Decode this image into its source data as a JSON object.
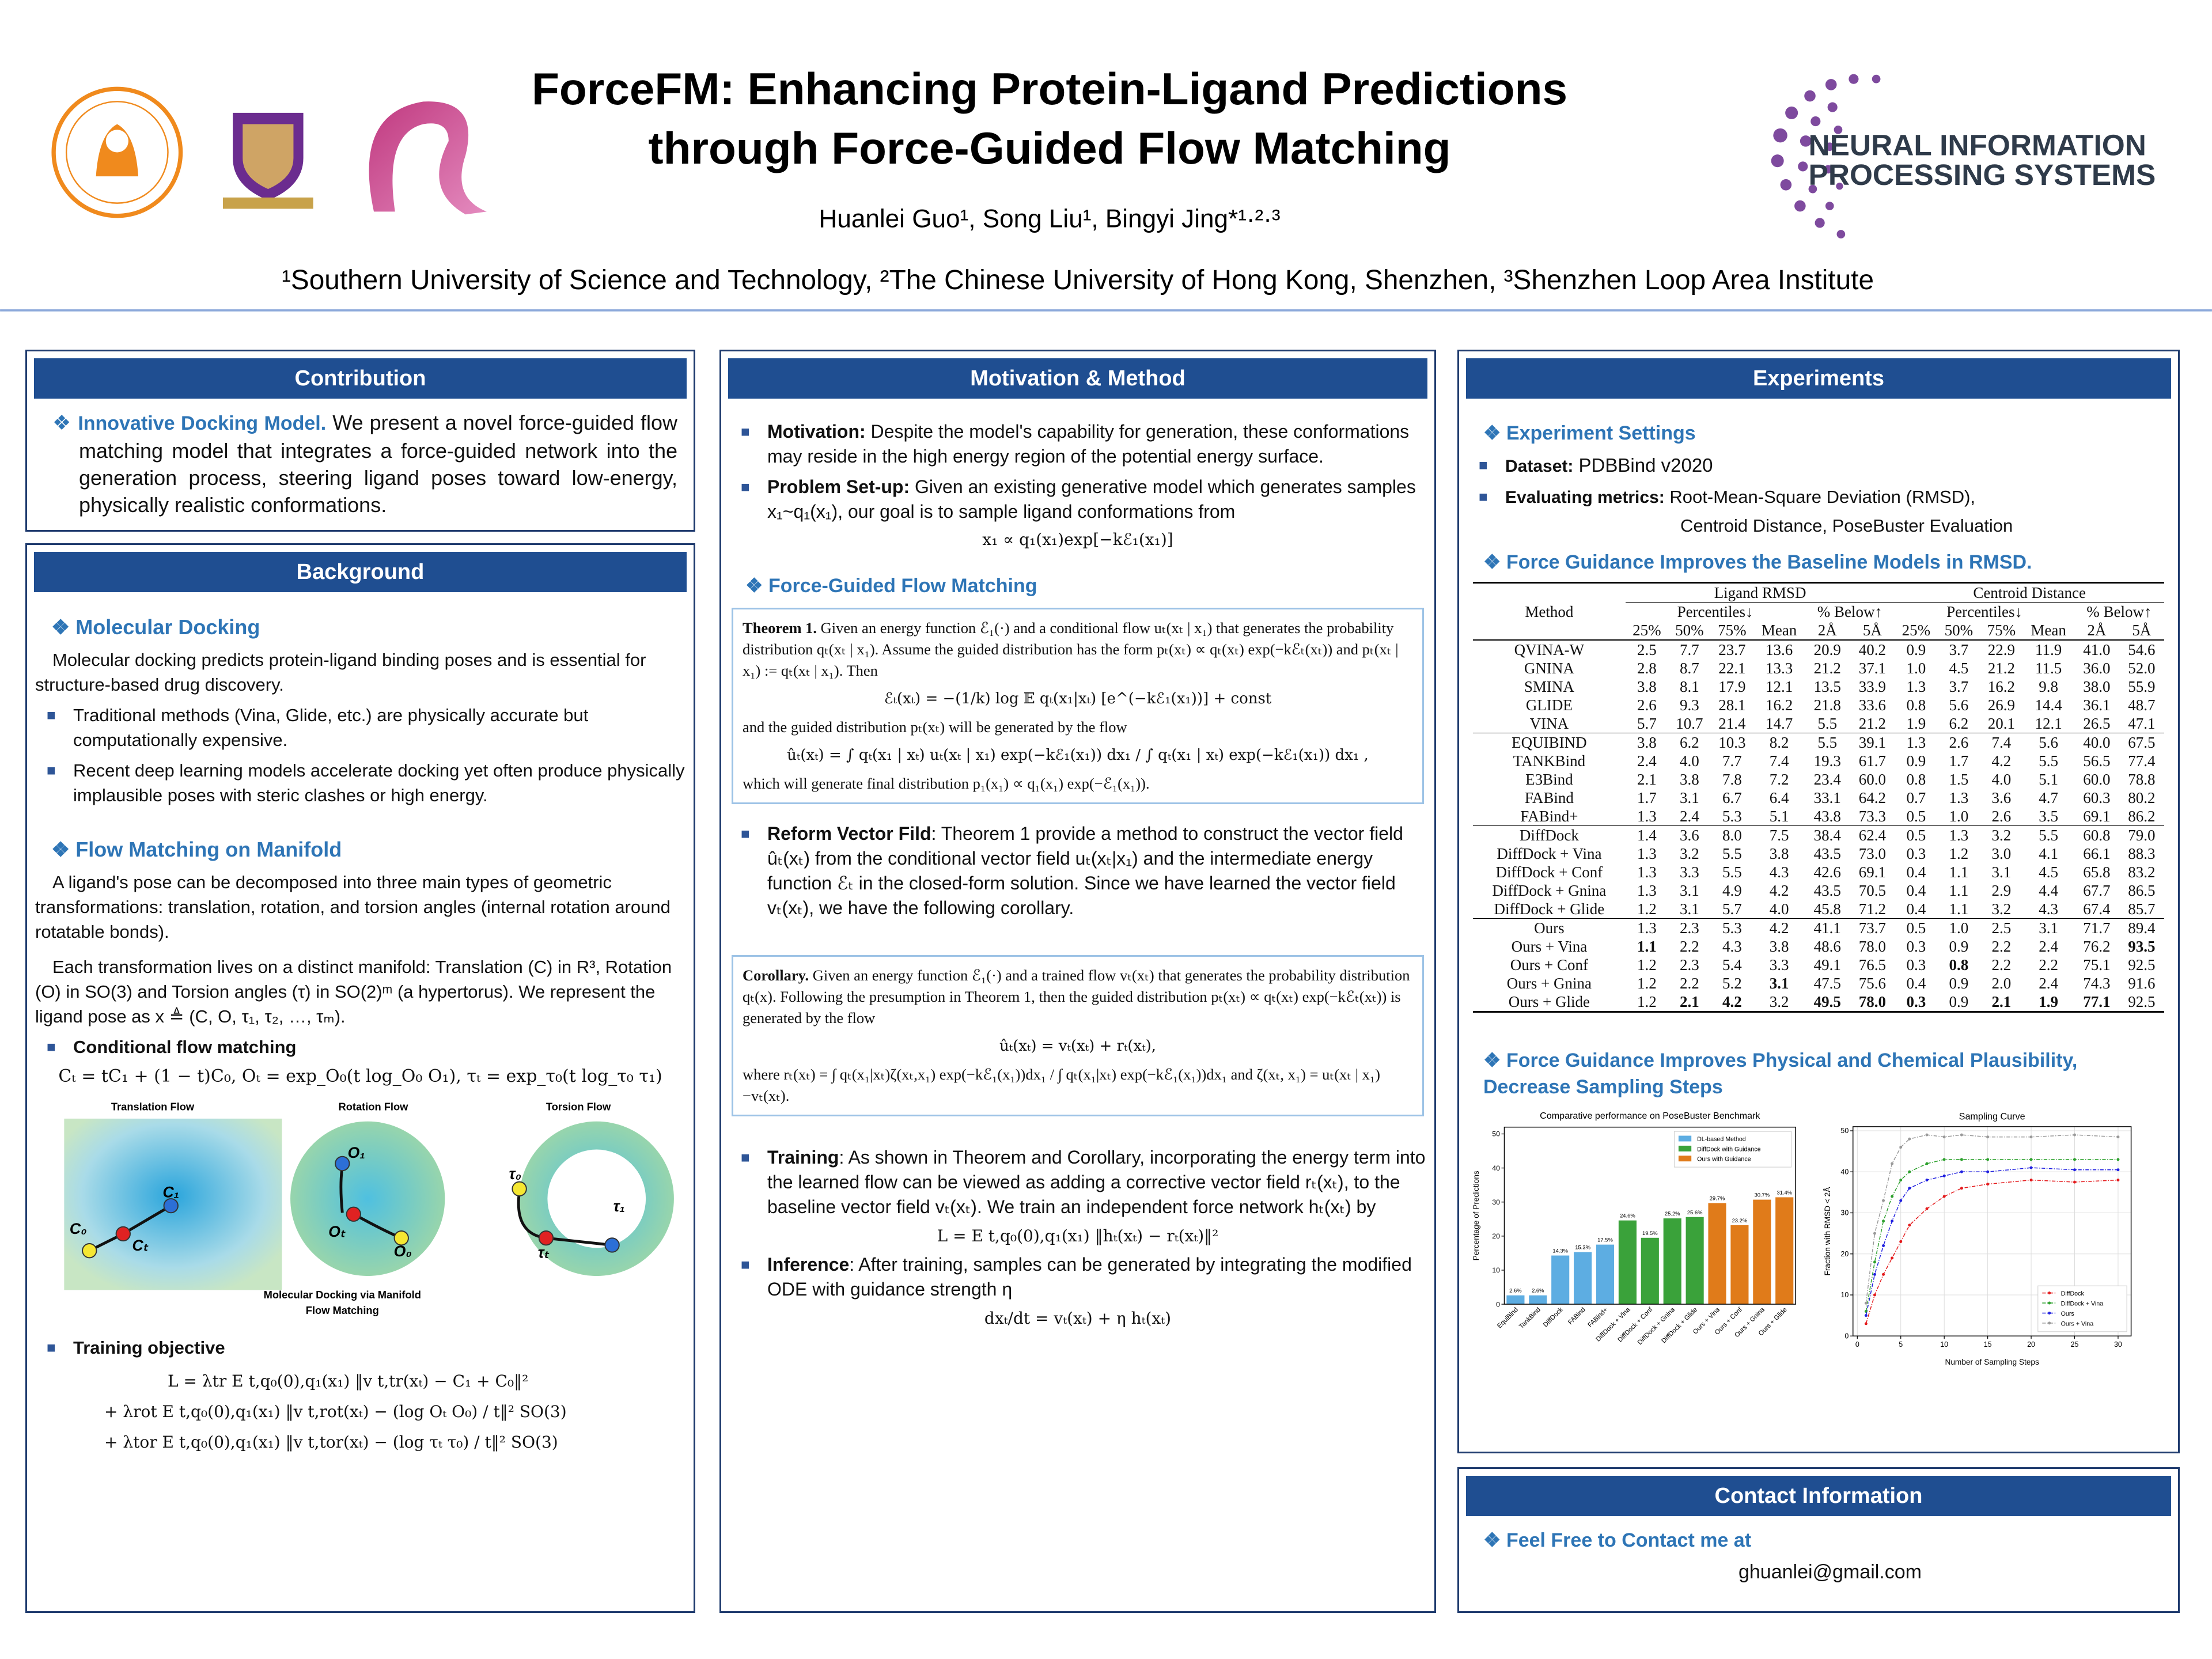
{
  "header": {
    "title_line1": "ForceFM: Enhancing Protein-Ligand Predictions",
    "title_line2": "through Force-Guided Flow Matching",
    "authors": "Huanlei Guo¹, Song Liu¹, Bingyi Jing*¹·²·³",
    "affiliations": "¹Southern University of Science and Technology, ²The Chinese University of Hong Kong, Shenzhen, ³Shenzhen Loop Area Institute",
    "neurips_line1": "NEURAL INFORMATION",
    "neurips_line2": "PROCESSING SYSTEMS"
  },
  "contribution": {
    "heading": "Contribution",
    "lead": "Innovative Docking Model.",
    "text": "We present a novel force-guided flow matching model that integrates a force-guided network into the generation process, steering ligand poses toward low-energy, physically realistic conformations."
  },
  "background": {
    "heading": "Background",
    "docking_heading": "Molecular Docking",
    "docking_text": "Molecular docking predicts protein-ligand binding poses and is essential for structure-based drug discovery.",
    "bullets": [
      "Traditional methods (Vina, Glide, etc.) are physically accurate but computationally expensive.",
      "Recent deep learning models accelerate docking yet often produce physically implausible poses with steric clashes or high energy."
    ],
    "flow_heading": "Flow Matching on Manifold",
    "flow_p1": "A ligand's pose can be decomposed into three main types of geometric transformations: translation, rotation, and torsion angles (internal rotation around rotatable bonds).",
    "flow_p2": "Each transformation lives on a distinct manifold: Translation (C) in R³, Rotation (O) in SO(3) and Torsion angles (τ) in SO(2)ᵐ (a hypertorus). We represent the ligand pose as x ≜ (C, O, τ₁, τ₂, …, τₘ).",
    "cfm_heading": "Conditional flow matching",
    "cfm_formula": "Cₜ = tC₁ + (1 − t)C₀,  Oₜ = exp_O₀(t log_O₀ O₁), τₜ = exp_τ₀(t log_τ₀ τ₁)",
    "figure": {
      "panels": [
        "Translation Flow",
        "Rotation Flow",
        "Torsion Flow"
      ],
      "caption": [
        "Molecular Docking via Manifold",
        "Flow Matching"
      ],
      "points": [
        "C₀",
        "C₁",
        "Cₜ",
        "O₀",
        "O₁",
        "Oₜ",
        "τ₀",
        "τ₁",
        "τₜ"
      ]
    },
    "objective_heading": "Training objective",
    "objective": [
      "L = λtr E t,q₀(0),q₁(x₁) ‖v t,tr(xₜ) − C₁ + C₀‖²",
      "+ λrot E t,q₀(0),q₁(x₁) ‖v t,rot(xₜ) − (log Oₜ O₀) / t‖² SO(3)",
      "+ λtor E t,q₀(0),q₁(x₁) ‖v t,tor(xₜ) − (log τₜ τ₀) / t‖² SO(3)"
    ]
  },
  "method": {
    "heading": "Motivation & Method",
    "motivation": {
      "label": "Motivation:",
      "text": "Despite the model's capability for generation, these conformations may reside in the high energy region of the potential energy surface."
    },
    "setup": {
      "label": "Problem Set-up:",
      "text": "Given an existing generative model which generates samples x₁~q₁(x₁), our goal is to sample ligand conformations from",
      "formula": "x₁ ∝ q₁(x₁)exp[−kℰ₁(x₁)]"
    },
    "fgfm_heading": "Force-Guided Flow Matching",
    "theorem": {
      "label": "Theorem 1.",
      "text1": "Given an energy function ℰ₁(·) and a conditional flow uₜ(xₜ | x₁) that generates the probability distribution qₜ(xₜ | x₁). Assume the guided distribution has the form pₜ(xₜ) ∝ qₜ(xₜ) exp(−kℰₜ(xₜ)) and pₜ(xₜ | x₁) := qₜ(xₜ | x₁). Then",
      "formula1": "ℰₜ(xₜ) = −(1/k) log 𝔼 qₜ(x₁|xₜ) [e^(−kℰ₁(x₁))] + const",
      "text2": "and the guided distribution pₜ(xₜ) will be generated by the flow",
      "formula2": "ûₜ(xₜ) = ∫ qₜ(x₁ | xₜ) uₜ(xₜ | x₁) exp(−kℰ₁(x₁)) dx₁ / ∫ qₜ(x₁ | xₜ) exp(−kℰ₁(x₁)) dx₁ ,",
      "text3": "which will generate final distribution p₁(x₁) ∝ q₁(x₁) exp(−ℰ₁(x₁))."
    },
    "reform": {
      "label": "Reform Vector Fild",
      "text": ": Theorem 1 provide a method to construct the vector field ûₜ(xₜ) from the conditional vector field uₜ(xₜ|x₁) and the intermediate energy function ℰₜ in the closed-form solution. Since we have learned the vector field vₜ(xₜ), we have the following corollary."
    },
    "corollary": {
      "label": "Corollary.",
      "text1": "Given an energy function ℰ₁(·) and a trained flow vₜ(xₜ) that generates the probability distribution qₜ(x). Following the presumption in Theorem 1, then the guided distribution pₜ(xₜ) ∝ qₜ(xₜ) exp(−kℰₜ(xₜ)) is generated by the flow",
      "formula1": "ûₜ(xₜ) = vₜ(xₜ) + rₜ(xₜ),",
      "text2": "where rₜ(xₜ) = ∫ qₜ(x₁|xₜ)ζ(xₜ,x₁) exp(−kℰ₁(x₁))dx₁ / ∫ qₜ(x₁|xₜ) exp(−kℰ₁(x₁))dx₁ and ζ(xₜ, x₁) = uₜ(xₜ | x₁)−vₜ(xₜ)."
    },
    "training": {
      "label": "Training",
      "text": ": As shown in Theorem and Corollary, incorporating the energy term into the learned flow can be viewed as adding a corrective vector field rₜ(xₜ), to the baseline vector field vₜ(xₜ). We train an independent force network hₜ(xₜ) by",
      "formula": "L = E t,q₀(0),q₁(x₁) ‖hₜ(xₜ) − rₜ(xₜ)‖²"
    },
    "inference": {
      "label": "Inference",
      "text": ": After training, samples can be generated by integrating the modified ODE with guidance strength η",
      "formula": "dxₜ/dt = vₜ(xₜ) + η hₜ(xₜ)"
    }
  },
  "experiments": {
    "heading": "Experiments",
    "settings_heading": "Experiment Settings",
    "dataset": {
      "label": "Dataset:",
      "text": "PDBBind v2020"
    },
    "metrics": {
      "label": "Evaluating metrics:",
      "text1": "Root-Mean-Square Deviation (RMSD),",
      "text2": "Centroid Distance, PoseBuster Evaluation"
    },
    "rmsd_heading": "Force Guidance Improves the Baseline Models in RMSD.",
    "table": {
      "method": "Method",
      "groups": [
        "Ligand RMSD",
        "Centroid Distance"
      ],
      "subgroups": [
        "Percentiles↓",
        "% Below↑"
      ],
      "columns": [
        "25%",
        "50%",
        "75%",
        "Mean",
        "2Å",
        "5Å"
      ],
      "rows": [
        [
          [
            "QVINA-W",
            "2.5",
            "7.7",
            "23.7",
            "13.6",
            "20.9",
            "40.2",
            "0.9",
            "3.7",
            "22.9",
            "11.9",
            "41.0",
            "54.6"
          ],
          [
            "GNINA",
            "2.8",
            "8.7",
            "22.1",
            "13.3",
            "21.2",
            "37.1",
            "1.0",
            "4.5",
            "21.2",
            "11.5",
            "36.0",
            "52.0"
          ],
          [
            "SMINA",
            "3.8",
            "8.1",
            "17.9",
            "12.1",
            "13.5",
            "33.9",
            "1.3",
            "3.7",
            "16.2",
            "9.8",
            "38.0",
            "55.9"
          ],
          [
            "GLIDE",
            "2.6",
            "9.3",
            "28.1",
            "16.2",
            "21.8",
            "33.6",
            "0.8",
            "5.6",
            "26.9",
            "14.4",
            "36.1",
            "48.7"
          ],
          [
            "VINA",
            "5.7",
            "10.7",
            "21.4",
            "14.7",
            "5.5",
            "21.2",
            "1.9",
            "6.2",
            "20.1",
            "12.1",
            "26.5",
            "47.1"
          ]
        ],
        [
          [
            "EQUIBIND",
            "3.8",
            "6.2",
            "10.3",
            "8.2",
            "5.5",
            "39.1",
            "1.3",
            "2.6",
            "7.4",
            "5.6",
            "40.0",
            "67.5"
          ],
          [
            "TANKBind",
            "2.4",
            "4.0",
            "7.7",
            "7.4",
            "19.3",
            "61.7",
            "0.9",
            "1.7",
            "4.2",
            "5.5",
            "56.5",
            "77.4"
          ],
          [
            "E3Bind",
            "2.1",
            "3.8",
            "7.8",
            "7.2",
            "23.4",
            "60.0",
            "0.8",
            "1.5",
            "4.0",
            "5.1",
            "60.0",
            "78.8"
          ],
          [
            "FABind",
            "1.7",
            "3.1",
            "6.7",
            "6.4",
            "33.1",
            "64.2",
            "0.7",
            "1.3",
            "3.6",
            "4.7",
            "60.3",
            "80.2"
          ],
          [
            "FABind+",
            "1.3",
            "2.4",
            "5.3",
            "5.1",
            "43.8",
            "73.3",
            "0.5",
            "1.0",
            "2.6",
            "3.5",
            "69.1",
            "86.2"
          ]
        ],
        [
          [
            "DiffDock",
            "1.4",
            "3.6",
            "8.0",
            "7.5",
            "38.4",
            "62.4",
            "0.5",
            "1.3",
            "3.2",
            "5.5",
            "60.8",
            "79.0"
          ],
          [
            "DiffDock + Vina",
            "1.3",
            "3.2",
            "5.5",
            "3.8",
            "43.5",
            "73.0",
            "0.3",
            "1.2",
            "3.0",
            "4.1",
            "66.1",
            "88.3"
          ],
          [
            "DiffDock + Conf",
            "1.3",
            "3.3",
            "5.5",
            "4.3",
            "42.6",
            "69.1",
            "0.4",
            "1.1",
            "3.1",
            "4.5",
            "65.8",
            "83.2"
          ],
          [
            "DiffDock + Gnina",
            "1.3",
            "3.1",
            "4.9",
            "4.2",
            "43.5",
            "70.5",
            "0.4",
            "1.1",
            "2.9",
            "4.4",
            "67.7",
            "86.5"
          ],
          [
            "DiffDock + Glide",
            "1.2",
            "3.1",
            "5.7",
            "4.0",
            "45.8",
            "71.2",
            "0.4",
            "1.1",
            "3.2",
            "4.3",
            "67.4",
            "85.7"
          ]
        ],
        [
          [
            "Ours",
            "1.3",
            "2.3",
            "5.3",
            "4.2",
            "41.1",
            "73.7",
            "0.5",
            "1.0",
            "2.5",
            "3.1",
            "71.7",
            "89.4"
          ],
          [
            "Ours + Vina",
            "1.1",
            "2.2",
            "4.3",
            "3.8",
            "48.6",
            "78.0",
            "0.3",
            "0.9",
            "2.2",
            "2.4",
            "76.2",
            "93.5"
          ],
          [
            "Ours + Conf",
            "1.2",
            "2.3",
            "5.4",
            "3.3",
            "49.1",
            "76.5",
            "0.3",
            "0.8",
            "2.2",
            "2.2",
            "75.1",
            "92.5"
          ],
          [
            "Ours + Gnina",
            "1.2",
            "2.2",
            "5.2",
            "3.1",
            "47.5",
            "75.6",
            "0.4",
            "0.9",
            "2.0",
            "2.4",
            "74.3",
            "91.6"
          ],
          [
            "Ours + Glide",
            "1.2",
            "2.1",
            "4.2",
            "3.2",
            "49.5",
            "78.0",
            "0.3",
            "0.9",
            "2.1",
            "1.9",
            "77.1",
            "92.5"
          ]
        ]
      ],
      "bold": [
        [
          3,
          1,
          1
        ],
        [
          3,
          1,
          12
        ],
        [
          3,
          2,
          8
        ],
        [
          3,
          3,
          4
        ],
        [
          3,
          4,
          2
        ],
        [
          3,
          4,
          3
        ],
        [
          3,
          4,
          5
        ],
        [
          3,
          4,
          6
        ],
        [
          3,
          4,
          7
        ],
        [
          3,
          4,
          9
        ],
        [
          3,
          4,
          10
        ],
        [
          3,
          4,
          11
        ]
      ]
    },
    "plaus_heading": "Force Guidance Improves Physical and Chemical Plausibility, Decrease Sampling Steps"
  },
  "contact": {
    "heading": "Contact Information",
    "sub": "Feel Free to Contact me at",
    "email": "ghuanlei@gmail.com"
  },
  "chart_data": [
    {
      "type": "bar",
      "title": "Comparative performance on PoseBuster Benchmark",
      "y_label": "Percentage of Predictions",
      "categories": [
        "EquiBind",
        "TankBind",
        "DiffDock",
        "FABind",
        "FABind+",
        "DiffDock + Vina",
        "DiffDock + Conf",
        "DiffDock + Gnina",
        "DiffDock + Glide",
        "Ours + Vina",
        "Ours + Conf",
        "Ours + Gnina",
        "Ours + Glide"
      ],
      "series": [
        {
          "name": "DL-based Method",
          "color": "#5dade2",
          "values": [
            2.6,
            2.6,
            14.3,
            15.3,
            17.5,
            null,
            null,
            null,
            null,
            null,
            null,
            null,
            null
          ],
          "value_labels": [
            "2.6%",
            "2.6%",
            "14.3%",
            "15.3%",
            "17.5%",
            null,
            null,
            null,
            null,
            null,
            null,
            null,
            null
          ]
        },
        {
          "name": "DiffDock with Guidance",
          "color": "#3aa23a",
          "values": [
            null,
            null,
            null,
            null,
            null,
            24.6,
            19.5,
            25.2,
            25.6,
            null,
            null,
            null,
            null
          ],
          "value_labels": [
            null,
            null,
            null,
            null,
            null,
            "24.6%",
            "19.5%",
            "25.2%",
            "25.6%",
            null,
            null,
            null,
            null
          ]
        },
        {
          "name": "Ours with Guidance",
          "color": "#e07b1a",
          "values": [
            null,
            null,
            null,
            null,
            null,
            null,
            null,
            null,
            null,
            29.7,
            23.2,
            30.7,
            31.4
          ],
          "value_labels": [
            null,
            null,
            null,
            null,
            null,
            null,
            null,
            null,
            null,
            "29.7%",
            "23.2%",
            "30.7%",
            "31.4%"
          ]
        }
      ],
      "ylim": [
        0,
        52
      ],
      "yticks": [
        0,
        10,
        20,
        30,
        40,
        50
      ],
      "grid": false,
      "legend": "upper right"
    },
    {
      "type": "line",
      "title": "Sampling Curve",
      "x_label": "Number of Sampling Steps",
      "y_label": "Fraction with RMSD < 2Å",
      "x": [
        1,
        2,
        3,
        4,
        5,
        6,
        8,
        10,
        12,
        15,
        20,
        25,
        30
      ],
      "series": [
        {
          "name": "DiffDock",
          "color": "#e41a1c",
          "values": [
            3,
            10,
            15,
            19,
            23,
            27,
            31,
            34,
            36,
            37,
            38,
            37.5,
            38
          ]
        },
        {
          "name": "DiffDock + Vina",
          "color": "#2ca02c",
          "values": [
            6,
            18,
            28,
            34,
            38,
            40,
            42,
            43,
            43,
            43,
            43,
            43,
            43
          ]
        },
        {
          "name": "Ours",
          "color": "#1f1fe0",
          "values": [
            5,
            15,
            22,
            28,
            33,
            36,
            38,
            39,
            40,
            40,
            41,
            40.5,
            40.5
          ]
        },
        {
          "name": "Ours + Vina",
          "color": "#999999",
          "values": [
            8,
            25,
            33,
            42,
            46,
            48,
            49,
            48.5,
            49,
            48.5,
            48.5,
            49,
            48.5
          ]
        }
      ],
      "xlim": [
        -0.5,
        31.5
      ],
      "xticks": [
        0,
        5,
        10,
        15,
        20,
        25,
        30
      ],
      "ylim": [
        0,
        51
      ],
      "yticks": [
        0,
        10,
        20,
        30,
        40,
        50
      ],
      "grid": true,
      "legend": "lower right",
      "markers": true
    }
  ]
}
